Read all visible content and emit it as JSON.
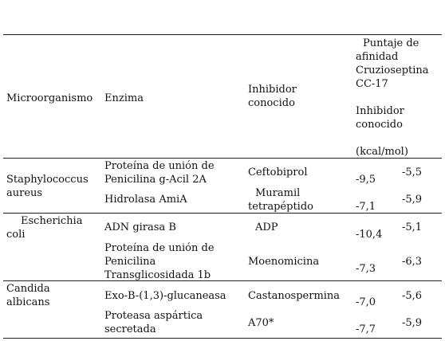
{
  "table": {
    "header": {
      "microorganismo": "Microorganismo",
      "enzima": "Enzima",
      "inhibidor_l1": "Inhibidor",
      "inhibidor_l2": "conocido",
      "score_l1": "Puntaje de",
      "score_l2": "afinidad",
      "score_l3": "Cruzioseptina",
      "score_l4": "CC-17",
      "score_l5": "Inhibidor",
      "score_l6": "conocido",
      "unit": "(kcal/mol)"
    },
    "groups": [
      {
        "organism_l1": "Staphylococcus",
        "organism_l2": "aureus",
        "rows": [
          {
            "enzyme_l1": "Proteína de unión de",
            "enzyme_l2": "Penicilina g-Acil 2A",
            "inhibitor": "Ceftobiprol",
            "score_a": "-9,5",
            "score_b": "-5,5"
          },
          {
            "enzyme_l1": "Hidrolasa AmiA",
            "inhibitor_l1": "Muramil",
            "inhibitor_l2": "tetrapéptido",
            "score_a": "-7,1",
            "score_b": "-5,9"
          }
        ]
      },
      {
        "organism_l1": "Escherichia",
        "organism_l2": "coli",
        "rows": [
          {
            "enzyme_l1": "ADN girasa B",
            "inhibitor": "ADP",
            "score_a": "-10,4",
            "score_b": "-5,1"
          },
          {
            "enzyme_l1": "Proteína de unión de",
            "enzyme_l2": "Penicilina",
            "enzyme_l3": "Transglicosidada 1b",
            "inhibitor": "Moenomicina",
            "score_a": "-7,3",
            "score_b": "-6,3"
          }
        ]
      },
      {
        "organism_l1": "Candida",
        "organism_l2": "albicans",
        "rows": [
          {
            "enzyme_l1": "Exo-B-(1,3)-glucaneasa",
            "inhibitor": "Castanospermina",
            "score_a": "-7,0",
            "score_b": "-5,6"
          },
          {
            "enzyme_l1": "Proteasa aspártica",
            "enzyme_l2": "secretada",
            "inhibitor": "A70*",
            "score_a": "-7,7",
            "score_b": "-5,9"
          }
        ]
      }
    ]
  }
}
